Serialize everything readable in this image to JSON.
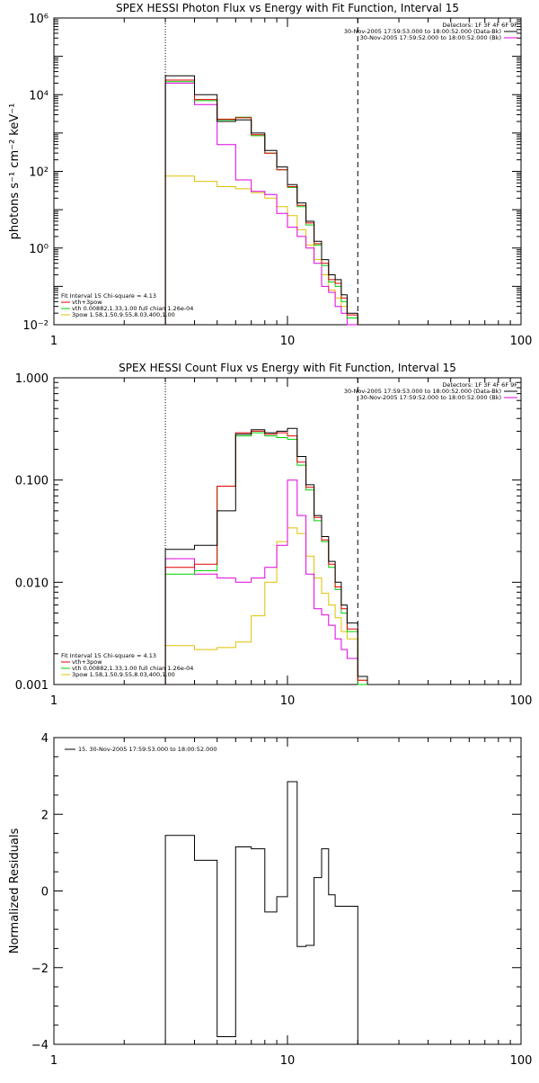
{
  "chart_data": [
    {
      "type": "line",
      "title": "SPEX HESSI Photon Flux vs Energy with Fit Function, Interval 15",
      "ylabel": "photons s⁻¹ cm⁻² keV⁻¹",
      "xlabel": "",
      "xscale": "log",
      "yscale": "log",
      "xlim": [
        1,
        100
      ],
      "ylim": [
        0.01,
        1000000
      ],
      "x_ticks": [
        {
          "value": 1,
          "label": "1"
        },
        {
          "value": 10,
          "label": "10"
        },
        {
          "value": 100,
          "label": "100"
        }
      ],
      "y_ticks": [
        {
          "value": 0.01,
          "label": "10⁻²"
        },
        {
          "value": 1,
          "label": "10⁰"
        },
        {
          "value": 100,
          "label": "10²"
        },
        {
          "value": 10000,
          "label": "10⁴"
        },
        {
          "value": 1000000,
          "label": "10⁶"
        }
      ],
      "vlines": [
        {
          "x": 3.0,
          "style": "dotted",
          "color": "#000000"
        },
        {
          "x": 20.0,
          "style": "dashed",
          "color": "#000000"
        }
      ],
      "legend_topright": [
        {
          "text": "Detectors: 1F 3F 4F 6F 9F",
          "color": "#000000",
          "line": false
        },
        {
          "text": "30-Nov-2005 17:59:53.000 to 18:00:52.000 (Data-Bk)",
          "color": "#000000",
          "line": true
        },
        {
          "text": "30-Nov-2005 17:59:52.000 to 18:00:52.000 (Bk)",
          "color": "#e000e0",
          "line": true
        }
      ],
      "legend_bottomleft": [
        {
          "text": "Fit Interval 15   Chi-square = 4.13",
          "color": "#000000",
          "line": false
        },
        {
          "text": "vth+3pow",
          "color": "#e00000",
          "line": true
        },
        {
          "text": "vth 0.00882,1.33,1.00  full chian 1.26e-04",
          "color": "#00d000",
          "line": true
        },
        {
          "text": "3pow 1.58,1.50,9.55,8.03,400,1.00",
          "color": "#e0c000",
          "line": true
        }
      ],
      "edges": [
        3,
        4,
        5,
        6,
        7,
        8,
        9,
        10,
        11,
        12,
        13,
        14,
        15,
        16,
        17,
        18,
        20,
        22
      ],
      "series": [
        {
          "color": "#000000",
          "values": [
            31000,
            10000,
            2000,
            2200,
            1000,
            350,
            130,
            45,
            15,
            5,
            1.5,
            0.5,
            0.2,
            0.15,
            0.06,
            0.02,
            0.01
          ]
        },
        {
          "color": "#e00000",
          "values": [
            24000,
            7500,
            2300,
            2500,
            900,
            300,
            110,
            40,
            13,
            4.5,
            1.3,
            0.4,
            0.15,
            0.12,
            0.05,
            0.018,
            0.008
          ]
        },
        {
          "color": "#00d000",
          "values": [
            22000,
            7000,
            2200,
            2600,
            850,
            300,
            110,
            38,
            12,
            4,
            1.2,
            0.35,
            0.13,
            0.1,
            0.04,
            0.015,
            0.007
          ]
        },
        {
          "color": "#e000e0",
          "values": [
            20000,
            5500,
            500,
            60,
            30,
            25,
            8,
            3.5,
            2.0,
            1.0,
            0.4,
            0.1,
            0.07,
            0.03,
            0.02,
            0.01,
            0.006
          ]
        },
        {
          "color": "#e0c000",
          "values": [
            75,
            55,
            40,
            35,
            28,
            20,
            12,
            7,
            3,
            1.2,
            0.5,
            0.2,
            0.08,
            0.05,
            0.03,
            0.015,
            0.008
          ]
        }
      ]
    },
    {
      "type": "line",
      "title": "SPEX HESSI Count Flux vs Energy with Fit Function, Interval 15",
      "ylabel": "",
      "xlabel": "",
      "xscale": "log",
      "yscale": "log",
      "xlim": [
        1,
        100
      ],
      "ylim": [
        0.001,
        1.0
      ],
      "x_ticks": [
        {
          "value": 1,
          "label": "1"
        },
        {
          "value": 10,
          "label": "10"
        },
        {
          "value": 100,
          "label": "100"
        }
      ],
      "y_ticks": [
        {
          "value": 0.001,
          "label": "0.001"
        },
        {
          "value": 0.01,
          "label": "0.010"
        },
        {
          "value": 0.1,
          "label": "0.100"
        },
        {
          "value": 1.0,
          "label": "1.000"
        }
      ],
      "vlines": [
        {
          "x": 3.0,
          "style": "dotted",
          "color": "#000000"
        },
        {
          "x": 20.0,
          "style": "dashed",
          "color": "#000000"
        }
      ],
      "legend_topright": [
        {
          "text": "Detectors: 1F 3F 4F 6F 9F",
          "color": "#000000",
          "line": false
        },
        {
          "text": "30-Nov-2005 17:59:53.000 to 18:00:52.000 (Data-Bk)",
          "color": "#000000",
          "line": true
        },
        {
          "text": "30-Nov-2005 17:59:52.000 to 18:00:52.000 (Bk)",
          "color": "#e000e0",
          "line": true
        }
      ],
      "legend_bottomleft": [
        {
          "text": "Fit Interval 15   Chi-square = 4.13",
          "color": "#000000",
          "line": false
        },
        {
          "text": "vth+3pow",
          "color": "#e00000",
          "line": true
        },
        {
          "text": "vth 0.00882,1.33,1.00  full chian 1.26e-04",
          "color": "#00d000",
          "line": true
        },
        {
          "text": "3pow 1.58,1.50,9.55,8.03,400,1.00",
          "color": "#e0c000",
          "line": true
        }
      ],
      "edges": [
        3,
        4,
        5,
        6,
        7,
        8,
        9,
        10,
        11,
        12,
        13,
        14,
        15,
        16,
        17,
        18,
        20,
        22
      ],
      "series": [
        {
          "color": "#000000",
          "values": [
            0.021,
            0.023,
            0.05,
            0.28,
            0.31,
            0.29,
            0.3,
            0.32,
            0.17,
            0.09,
            0.045,
            0.028,
            0.016,
            0.01,
            0.006,
            0.004,
            0.0012
          ]
        },
        {
          "color": "#e00000",
          "values": [
            0.014,
            0.015,
            0.087,
            0.29,
            0.3,
            0.28,
            0.29,
            0.27,
            0.15,
            0.085,
            0.043,
            0.026,
            0.015,
            0.009,
            0.0055,
            0.0035,
            0.0011
          ]
        },
        {
          "color": "#00d000",
          "values": [
            0.012,
            0.013,
            0.087,
            0.27,
            0.29,
            0.27,
            0.26,
            0.25,
            0.14,
            0.08,
            0.04,
            0.025,
            0.014,
            0.0085,
            0.005,
            0.0033,
            0.001
          ]
        },
        {
          "color": "#e000e0",
          "values": [
            0.017,
            0.012,
            0.011,
            0.01,
            0.011,
            0.014,
            0.023,
            0.1,
            0.045,
            0.012,
            0.0055,
            0.0048,
            0.0038,
            0.0028,
            0.0022,
            0.0018,
            0.001
          ]
        },
        {
          "color": "#e0c000",
          "values": [
            0.0024,
            0.0022,
            0.0023,
            0.0026,
            0.0047,
            0.01,
            0.025,
            0.034,
            0.03,
            0.018,
            0.011,
            0.0078,
            0.006,
            0.0045,
            0.0033,
            0.0028,
            0.0011
          ]
        }
      ]
    },
    {
      "type": "line",
      "title": "",
      "ylabel": "Normalized Residuals",
      "xlabel": "",
      "xscale": "log",
      "yscale": "linear",
      "xlim": [
        1,
        100
      ],
      "ylim": [
        -4,
        4
      ],
      "x_ticks": [
        {
          "value": 1,
          "label": "1"
        },
        {
          "value": 10,
          "label": "10"
        },
        {
          "value": 100,
          "label": "100"
        }
      ],
      "y_ticks": [
        {
          "value": -4,
          "label": "−4"
        },
        {
          "value": -2,
          "label": "−2"
        },
        {
          "value": 0,
          "label": "0"
        },
        {
          "value": 2,
          "label": "2"
        },
        {
          "value": 4,
          "label": "4"
        }
      ],
      "vlines": [],
      "legend_topright": [],
      "legend_topleft": [
        {
          "text": "15. 30-Nov-2005 17:59:53.000 to 18:00:52.000",
          "color": "#000000",
          "line": true
        }
      ],
      "legend_bottomleft": [],
      "edges": [
        3,
        4,
        5,
        6,
        7,
        8,
        9,
        10,
        11,
        12,
        13,
        14,
        15,
        16,
        17,
        18,
        20
      ],
      "series": [
        {
          "color": "#000000",
          "values": [
            1.45,
            0.8,
            -3.8,
            1.15,
            1.1,
            -0.55,
            -0.15,
            2.85,
            -1.45,
            -1.42,
            0.35,
            1.1,
            -0.1,
            -0.4,
            -0.4,
            -0.4
          ]
        }
      ]
    }
  ]
}
